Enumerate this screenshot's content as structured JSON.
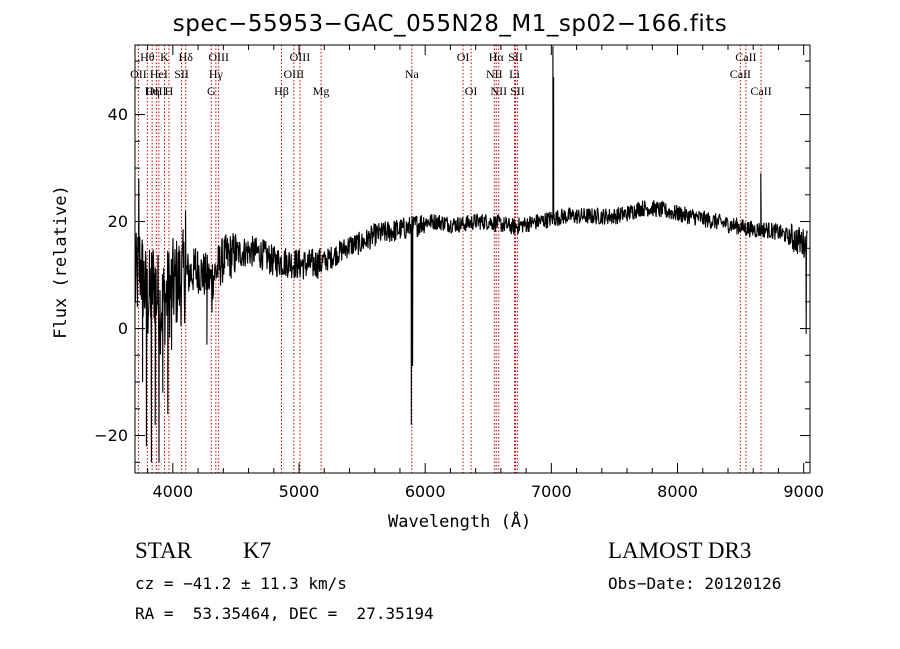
{
  "chart_data": {
    "type": "line",
    "title": "spec−55953−GAC_055N28_M1_sp02−166.fits",
    "xlabel": "Wavelength (Å)",
    "ylabel": "Flux (relative)",
    "xlim": [
      3700,
      9050
    ],
    "ylim": [
      -27,
      53
    ],
    "xticks": [
      4000,
      5000,
      6000,
      7000,
      8000,
      9000
    ],
    "yticks": [
      -20,
      0,
      20,
      40
    ],
    "ytick_labels": [
      "−20",
      "0",
      "20",
      "40"
    ],
    "series": [
      {
        "name": "spectrum",
        "anchors": [
          [
            3700,
            8
          ],
          [
            3740,
            12
          ],
          [
            3800,
            5
          ],
          [
            3850,
            9
          ],
          [
            3900,
            4
          ],
          [
            4000,
            8
          ],
          [
            4100,
            10
          ],
          [
            4200,
            11
          ],
          [
            4300,
            9
          ],
          [
            4400,
            13
          ],
          [
            4500,
            14
          ],
          [
            4600,
            14.5
          ],
          [
            4700,
            14
          ],
          [
            4800,
            12.5
          ],
          [
            4900,
            12.5
          ],
          [
            5000,
            12
          ],
          [
            5100,
            12
          ],
          [
            5200,
            12.5
          ],
          [
            5300,
            14
          ],
          [
            5400,
            15.5
          ],
          [
            5500,
            16
          ],
          [
            5600,
            17.5
          ],
          [
            5700,
            18
          ],
          [
            5800,
            18.5
          ],
          [
            5900,
            19
          ],
          [
            6000,
            20
          ],
          [
            6100,
            20
          ],
          [
            6200,
            19.5
          ],
          [
            6300,
            19.5
          ],
          [
            6400,
            20
          ],
          [
            6500,
            20
          ],
          [
            6600,
            19.5
          ],
          [
            6700,
            19
          ],
          [
            6800,
            19.5
          ],
          [
            6900,
            20
          ],
          [
            7000,
            20.5
          ],
          [
            7100,
            21
          ],
          [
            7200,
            21
          ],
          [
            7300,
            21
          ],
          [
            7400,
            21
          ],
          [
            7500,
            21
          ],
          [
            7600,
            21.5
          ],
          [
            7700,
            22.5
          ],
          [
            7800,
            22.5
          ],
          [
            7900,
            22
          ],
          [
            8000,
            21.5
          ],
          [
            8100,
            21
          ],
          [
            8200,
            20.5
          ],
          [
            8300,
            20
          ],
          [
            8400,
            19.5
          ],
          [
            8500,
            19
          ],
          [
            8600,
            18.5
          ],
          [
            8700,
            18.5
          ],
          [
            8800,
            18
          ],
          [
            8900,
            17
          ],
          [
            9000,
            16
          ]
        ],
        "features": [
          [
            3730,
            28
          ],
          [
            3760,
            -10
          ],
          [
            3790,
            -22
          ],
          [
            3830,
            -25
          ],
          [
            3860,
            -18
          ],
          [
            3890,
            -25
          ],
          [
            3920,
            -12
          ],
          [
            3960,
            -16
          ],
          [
            3990,
            -4
          ],
          [
            4100,
            22
          ],
          [
            4180,
            15
          ],
          [
            4270,
            -3
          ],
          [
            4310,
            3
          ],
          [
            5890,
            -18
          ],
          [
            5900,
            -7
          ],
          [
            7012,
            53
          ],
          [
            7018,
            47
          ],
          [
            8660,
            29
          ],
          [
            9020,
            -1
          ]
        ]
      }
    ],
    "lines": [
      {
        "label": "Hθ",
        "x": 3798,
        "row": 1
      },
      {
        "label": "OII",
        "x": 3727,
        "row": 2
      },
      {
        "label": "OIII",
        "x": 3869,
        "row": 3
      },
      {
        "label": "Hη",
        "x": 3836,
        "row": 3
      },
      {
        "label": "K",
        "x": 3934,
        "row": 1
      },
      {
        "label": "HeI",
        "x": 3889,
        "row": 2
      },
      {
        "label": "H",
        "x": 3969,
        "row": 3
      },
      {
        "label": "Hδ",
        "x": 4102,
        "row": 1
      },
      {
        "label": "SII",
        "x": 4069,
        "row": 2
      },
      {
        "label": "OIII",
        "x": 4363,
        "row": 1
      },
      {
        "label": "Hγ",
        "x": 4341,
        "row": 2
      },
      {
        "label": "G",
        "x": 4305,
        "row": 3
      },
      {
        "label": "OIII",
        "x": 5007,
        "row": 1
      },
      {
        "label": "OIII",
        "x": 4959,
        "row": 2
      },
      {
        "label": "Hβ",
        "x": 4861,
        "row": 3
      },
      {
        "label": "Mg",
        "x": 5175,
        "row": 3
      },
      {
        "label": "Na",
        "x": 5894,
        "row": 2
      },
      {
        "label": "OI",
        "x": 6300,
        "row": 1
      },
      {
        "label": "OI",
        "x": 6364,
        "row": 3
      },
      {
        "label": "Hα",
        "x": 6563,
        "row": 1
      },
      {
        "label": "NII",
        "x": 6548,
        "row": 2
      },
      {
        "label": "NII",
        "x": 6583,
        "row": 3
      },
      {
        "label": "SII",
        "x": 6716,
        "row": 1
      },
      {
        "label": "Li",
        "x": 6708,
        "row": 2
      },
      {
        "label": "SII",
        "x": 6731,
        "row": 3
      },
      {
        "label": "CaII",
        "x": 8542,
        "row": 1
      },
      {
        "label": "CaII",
        "x": 8498,
        "row": 2
      },
      {
        "label": "CaII",
        "x": 8662,
        "row": 3
      }
    ]
  },
  "info": {
    "class_label": "STAR",
    "subclass_label": "K7",
    "survey_label": "LAMOST DR3",
    "cz_text": "cz = −41.2 ± 11.3 km/s",
    "obs_date_text": "Obs−Date: 20120126",
    "coords_text": "RA =  53.35464, DEC =  27.35194"
  }
}
